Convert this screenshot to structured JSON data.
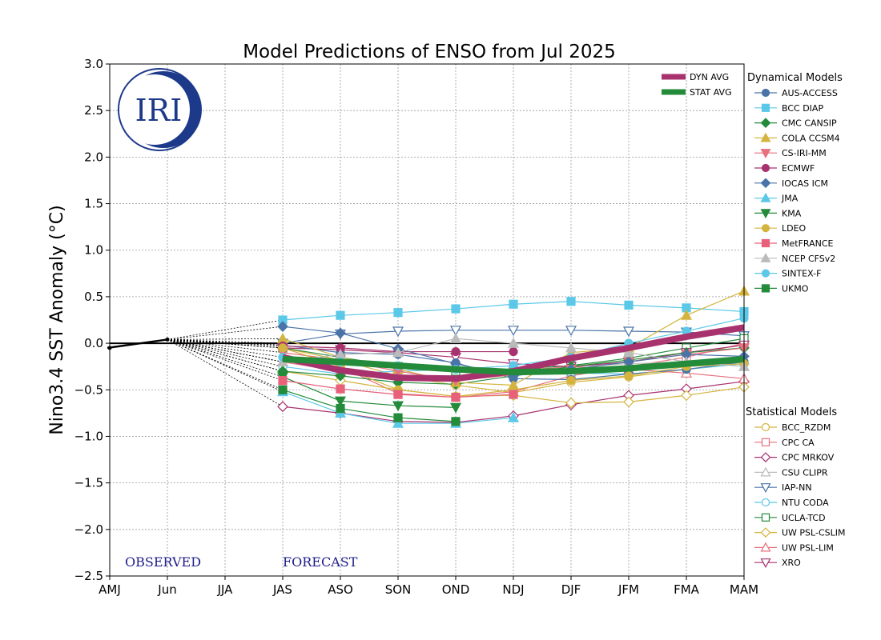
{
  "chart_data": {
    "type": "line",
    "title": "Model Predictions of ENSO from Jul 2025",
    "ylabel": "Nino3.4 SST Anomaly (°C)",
    "xlabel": "",
    "categories": [
      "AMJ",
      "Jun",
      "JJA",
      "JAS",
      "ASO",
      "SON",
      "OND",
      "NDJ",
      "DJF",
      "JFM",
      "FMA",
      "MAM"
    ],
    "ylim": [
      -2.5,
      3.0
    ],
    "yticks": [
      -2.5,
      -2.0,
      -1.5,
      -1.0,
      -0.5,
      0.0,
      0.5,
      1.0,
      1.5,
      2.0,
      2.5,
      3.0
    ],
    "ytick_labels": [
      "−2.5",
      "−2.0",
      "−1.5",
      "−1.0",
      "−0.5",
      "0.0",
      "0.5",
      "1.0",
      "1.5",
      "2.0",
      "2.5",
      "3.0"
    ],
    "grid": true,
    "observed": {
      "x": [
        0,
        1
      ],
      "values": [
        -0.05,
        0.04
      ]
    },
    "observed_label": "OBSERVED",
    "forecast_label": "FORECAST",
    "logo_text": "IRI",
    "dynamical_title": "Dynamical Models",
    "statistical_title": "Statistical Models",
    "averages": [
      {
        "name": "DYN AVG",
        "color": "#a8326e",
        "values": [
          -0.15,
          -0.29,
          -0.37,
          -0.38,
          -0.3,
          -0.16,
          -0.05,
          0.07,
          0.17
        ]
      },
      {
        "name": "STAT AVG",
        "color": "#238b3a",
        "values": [
          -0.17,
          -0.2,
          -0.24,
          -0.28,
          -0.31,
          -0.3,
          -0.27,
          -0.22,
          -0.17
        ]
      }
    ],
    "dynamical": [
      {
        "name": "AUS-ACCESS",
        "color": "#4a74a8",
        "marker": "circle",
        "filled": true,
        "values": [
          -0.02,
          -0.1,
          -0.12,
          -0.21,
          -0.38,
          -0.39,
          -0.33,
          -0.28,
          -0.2
        ]
      },
      {
        "name": "BCC DIAP",
        "color": "#5bc8e8",
        "marker": "square",
        "filled": true,
        "values": [
          0.25,
          0.3,
          0.33,
          0.37,
          0.42,
          0.45,
          0.41,
          0.38,
          0.34
        ]
      },
      {
        "name": "CMC CANSIP",
        "color": "#238b3a",
        "marker": "diamond",
        "filled": true,
        "values": [
          -0.3,
          -0.35,
          -0.42,
          -0.44,
          -0.35,
          -0.25,
          -0.18,
          -0.1,
          -0.05
        ]
      },
      {
        "name": "COLA CCSM4",
        "color": "#d4b43e",
        "marker": "triangle-up",
        "filled": true,
        "values": [
          0.05,
          -0.15,
          -0.28,
          -0.42,
          -0.45,
          -0.1,
          -0.05,
          0.3,
          0.56
        ]
      },
      {
        "name": "CS-IRI-MM",
        "color": "#e8707e",
        "marker": "triangle-down",
        "filled": true,
        "values": [
          -0.1,
          -0.18,
          -0.3,
          -0.4,
          -0.34,
          -0.28,
          -0.2,
          -0.12,
          -0.05
        ]
      },
      {
        "name": "ECMWF",
        "color": "#a8326e",
        "marker": "circle",
        "filled": true,
        "values": [
          -0.03,
          -0.05,
          -0.09,
          -0.09,
          -0.09
        ]
      },
      {
        "name": "IOCAS ICM",
        "color": "#4a74a8",
        "marker": "diamond",
        "filled": true,
        "values": [
          0.18,
          0.11,
          -0.06,
          -0.22,
          -0.35,
          -0.28,
          -0.2,
          -0.12,
          -0.14
        ]
      },
      {
        "name": "JMA",
        "color": "#5bc8e8",
        "marker": "triangle-up",
        "filled": true,
        "values": [
          -0.52,
          -0.75,
          -0.86,
          -0.86,
          -0.8
        ]
      },
      {
        "name": "KMA",
        "color": "#238b3a",
        "marker": "triangle-down",
        "filled": true,
        "values": [
          -0.36,
          -0.62,
          -0.67,
          -0.69
        ]
      },
      {
        "name": "LDEO",
        "color": "#d4b43e",
        "marker": "circle",
        "filled": true,
        "values": [
          -0.05,
          -0.25,
          -0.5,
          -0.57,
          -0.5,
          -0.4,
          -0.35,
          -0.25,
          -0.22
        ]
      },
      {
        "name": "MetFRANCE",
        "color": "#e8607a",
        "marker": "square",
        "filled": true,
        "values": [
          -0.4,
          -0.49,
          -0.55,
          -0.58,
          -0.55
        ]
      },
      {
        "name": "NCEP CFSv2",
        "color": "#bbbbbb",
        "marker": "triangle-up",
        "filled": true,
        "values": [
          -0.2,
          -0.12,
          -0.1,
          0.05,
          0.0,
          -0.05,
          -0.1,
          -0.2,
          -0.25
        ]
      },
      {
        "name": "SINTEX-F",
        "color": "#5bc8e8",
        "marker": "circle",
        "filled": true,
        "values": [
          -0.15,
          -0.2,
          -0.24,
          -0.28,
          -0.24,
          -0.15,
          0.0,
          0.13,
          0.27
        ]
      },
      {
        "name": "UKMO",
        "color": "#238b3a",
        "marker": "square",
        "filled": true,
        "values": [
          -0.5,
          -0.7,
          -0.8,
          -0.84
        ]
      }
    ],
    "statistical": [
      {
        "name": "BCC_RZDM",
        "color": "#d4b43e",
        "marker": "circle",
        "filled": false,
        "values": [
          -0.05,
          -0.18,
          -0.35,
          -0.45,
          -0.53,
          -0.42,
          -0.36,
          -0.28,
          -0.22
        ]
      },
      {
        "name": "CPC CA",
        "color": "#e8707e",
        "marker": "square",
        "filled": false,
        "values": [
          -0.05,
          -0.25,
          -0.54,
          -0.58,
          -0.52,
          -0.35,
          -0.25,
          -0.15,
          0.0
        ]
      },
      {
        "name": "CPC MRKOV",
        "color": "#a8326e",
        "marker": "diamond",
        "filled": false,
        "values": [
          -0.68,
          -0.75,
          -0.84,
          -0.85,
          -0.78,
          -0.66,
          -0.56,
          -0.49,
          -0.41
        ]
      },
      {
        "name": "CSU CLIPR",
        "color": "#bbbbbb",
        "marker": "triangle-up",
        "filled": false,
        "values": [
          -0.2,
          -0.3,
          -0.35,
          -0.35,
          -0.3,
          -0.25,
          -0.22,
          -0.2,
          -0.18
        ]
      },
      {
        "name": "IAP-NN",
        "color": "#4a74a8",
        "marker": "triangle-down",
        "filled": false,
        "values": [
          0.0,
          0.1,
          0.13,
          0.14,
          0.14,
          0.14,
          0.13,
          0.12,
          0.08
        ]
      },
      {
        "name": "NTU CODA",
        "color": "#5bc8e8",
        "marker": "circle",
        "filled": false,
        "values": [
          -0.25,
          -0.33,
          -0.3,
          -0.28,
          -0.3,
          -0.32,
          -0.33,
          -0.28,
          -0.22
        ]
      },
      {
        "name": "UCLA-TCD",
        "color": "#238b3a",
        "marker": "square",
        "filled": false,
        "values": [
          -0.05,
          -0.15,
          -0.25,
          -0.3,
          -0.28,
          -0.24,
          -0.16,
          -0.05,
          0.05
        ]
      },
      {
        "name": "UW PSL-CSLIM",
        "color": "#d4b43e",
        "marker": "diamond",
        "filled": false,
        "values": [
          -0.3,
          -0.4,
          -0.5,
          -0.57,
          -0.56,
          -0.64,
          -0.63,
          -0.56,
          -0.47
        ]
      },
      {
        "name": "UW PSL-LIM",
        "color": "#e8707e",
        "marker": "triangle-up",
        "filled": false,
        "values": [
          -0.2,
          -0.3,
          -0.35,
          -0.4,
          -0.3,
          -0.25,
          -0.28,
          -0.32,
          -0.38
        ]
      },
      {
        "name": "XRO",
        "color": "#a8326e",
        "marker": "triangle-down",
        "filled": false,
        "values": [
          -0.05,
          -0.07,
          -0.1,
          -0.15,
          -0.22,
          -0.25,
          -0.2,
          -0.1,
          -0.02
        ]
      }
    ]
  }
}
